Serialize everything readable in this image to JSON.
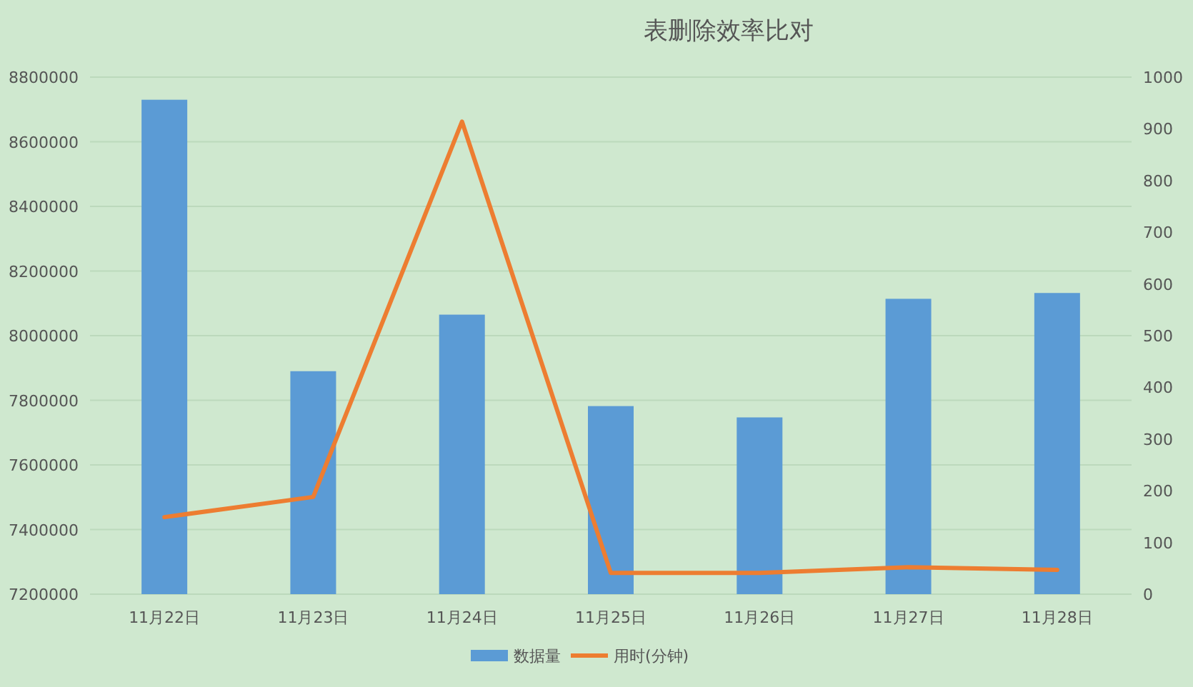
{
  "chart_data": {
    "type": "bar",
    "title": "表删除效率比对",
    "categories": [
      "11月22日",
      "11月23日",
      "11月24日",
      "11月25日",
      "11月26日",
      "11月27日",
      "11月28日"
    ],
    "series": [
      {
        "name": "数据量",
        "color": "#5b9bd5",
        "values": [
          8730000,
          7890000,
          8065000,
          7782000,
          7747000,
          8114000,
          8132000
        ]
      },
      {
        "name": "用时(分钟)",
        "type": "line",
        "axis": "y2",
        "color": "#ed7d31",
        "values": [
          149,
          188,
          914,
          41,
          41,
          52,
          47
        ]
      }
    ],
    "ylim": [
      7200000,
      8800000
    ],
    "yticks": [
      7200000,
      7400000,
      7600000,
      7800000,
      8000000,
      8200000,
      8400000,
      8600000,
      8800000
    ],
    "y2lim": [
      0,
      1000
    ],
    "y2ticks": [
      0,
      100,
      200,
      300,
      400,
      500,
      600,
      700,
      800,
      900,
      1000
    ],
    "grid": "y",
    "legend": "bottom"
  }
}
